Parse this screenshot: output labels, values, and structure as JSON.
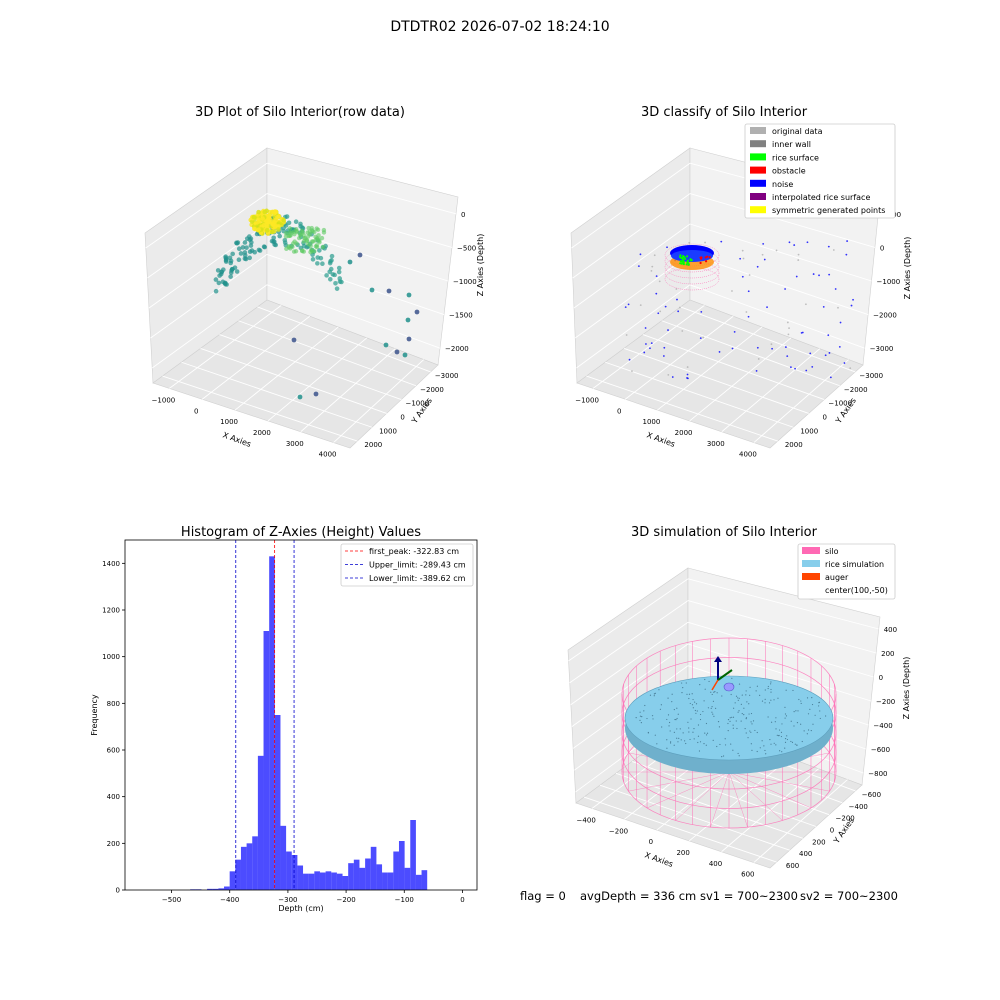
{
  "figure": {
    "suptitle": "DTDTR02 2026-07-02 18:24:10"
  },
  "chart_data": [
    {
      "type": "scatter",
      "title": "3D Plot of Silo Interior(row data)",
      "xlabel": "X Axies",
      "ylabel": "Y Axies",
      "zlabel": "Z Axies (Depth)",
      "x_ticks": [
        "−1000",
        "0",
        "1000",
        "2000",
        "3000",
        "4000"
      ],
      "y_ticks": [
        "−3000",
        "−2000",
        "−1000",
        "0",
        "1000",
        "2000"
      ],
      "z_ticks": [
        "−2000",
        "−1500",
        "−1000",
        "−500",
        "0"
      ],
      "xlim": [
        -1500,
        4200
      ],
      "ylim": [
        -3200,
        2600
      ],
      "zlim": [
        -2300,
        100
      ],
      "colormap": "viridis"
    },
    {
      "type": "scatter",
      "title": "3D classify of Silo Interior",
      "xlabel": "X Axies",
      "ylabel": "Y Axies",
      "zlabel": "Z Axies (Depth)",
      "x_ticks": [
        "−1000",
        "0",
        "1000",
        "2000",
        "3000",
        "4000"
      ],
      "y_ticks": [
        "−3000",
        "−2000",
        "−1000",
        "0",
        "1000",
        "2000"
      ],
      "z_ticks": [
        "−3000",
        "−2000",
        "−1000",
        "0",
        "1000"
      ],
      "legend": [
        {
          "label": "original data",
          "color": "#b0b0b0"
        },
        {
          "label": "inner wall",
          "color": "#808080"
        },
        {
          "label": "rice surface",
          "color": "#00ff00"
        },
        {
          "label": "obstacle",
          "color": "#ff0000"
        },
        {
          "label": "noise",
          "color": "#0000ff"
        },
        {
          "label": "interpolated rice surface",
          "color": "#800080"
        },
        {
          "label": "symmetric generated points",
          "color": "#ffff00"
        }
      ],
      "legend_position": "top-right"
    },
    {
      "type": "bar",
      "title": "Histogram of Z-Axies (Height) Values",
      "xlabel": "Depth (cm)",
      "ylabel": "Frequency",
      "xlim": [
        -580,
        25
      ],
      "ylim": [
        0,
        1500
      ],
      "x_ticks": [
        -500,
        -400,
        -300,
        -200,
        -100,
        0
      ],
      "x_tick_labels": [
        "−500",
        "−400",
        "−300",
        "−200",
        "−100",
        "0"
      ],
      "y_ticks": [
        0,
        200,
        400,
        600,
        800,
        1000,
        1200,
        1400
      ],
      "y_tick_labels": [
        "0",
        "200",
        "400",
        "600",
        "800",
        "1000",
        "1200",
        "1400"
      ],
      "bar_color": "#0000ff",
      "bin_start": -565,
      "bin_width": 9.7,
      "values": [
        0,
        0,
        0,
        0,
        0,
        0,
        0,
        0,
        0,
        0,
        3,
        3,
        0,
        5,
        5,
        7,
        15,
        80,
        130,
        185,
        200,
        230,
        575,
        1110,
        1430,
        750,
        275,
        165,
        150,
        105,
        70,
        70,
        80,
        75,
        80,
        75,
        70,
        60,
        115,
        130,
        95,
        135,
        185,
        110,
        75,
        75,
        165,
        210,
        95,
        300,
        65,
        85
      ],
      "lines": [
        {
          "label": "first_peak: -322.83 cm",
          "value": -322.83,
          "color": "#ff0000"
        },
        {
          "label": "Upper_limit: -289.43 cm",
          "value": -289.43,
          "color": "#0000cc"
        },
        {
          "label": "Lower_limit: -389.62 cm",
          "value": -389.62,
          "color": "#0000cc"
        }
      ],
      "legend_position": "top-right"
    },
    {
      "type": "scatter",
      "title": "3D simulation of Silo Interior",
      "xlabel": "X Axies",
      "ylabel": "Y Axies",
      "zlabel": "Z Axies (Depth)",
      "x_ticks": [
        "−400",
        "−200",
        "0",
        "200",
        "400",
        "600"
      ],
      "y_ticks": [
        "−600",
        "−400",
        "−200",
        "0",
        "200",
        "400",
        "600"
      ],
      "z_ticks": [
        "−800",
        "−600",
        "−400",
        "−200",
        "0",
        "200",
        "400"
      ],
      "legend": [
        {
          "label": "silo",
          "color": "#ff69b4"
        },
        {
          "label": "rice simulation",
          "color": "#87ceeb"
        },
        {
          "label": "auger",
          "color": "#ff4500"
        },
        {
          "label": "center(100,-50)",
          "color": "none"
        }
      ],
      "legend_position": "top-right"
    }
  ],
  "status": {
    "flag": "flag = 0",
    "avg_depth": "avgDepth = 336 cm",
    "sv1": "sv1 = 700~2300",
    "sv2": "sv2 = 700~2300"
  }
}
